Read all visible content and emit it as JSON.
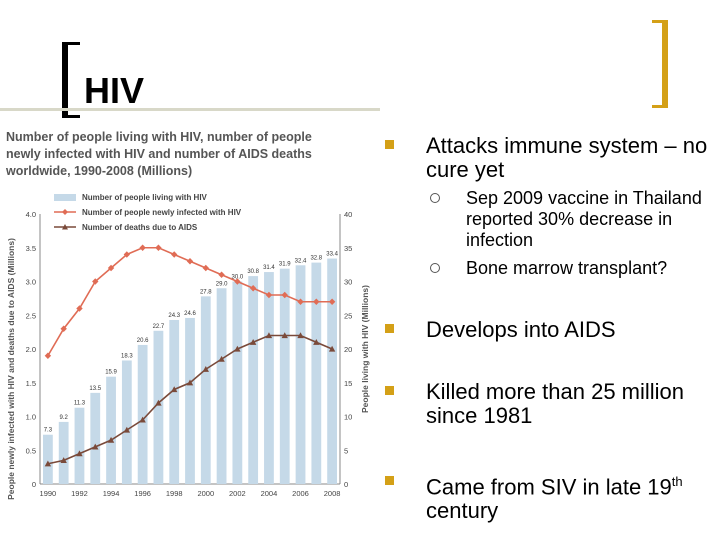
{
  "slide": {
    "title": "HIV",
    "bullets": [
      {
        "text": "Attacks immune system – no cure yet"
      },
      {
        "text": "Develops into AIDS"
      },
      {
        "text": "Killed more than 25 million since 1981"
      },
      {
        "text": "Came from SIV in late 19",
        "sup": "th",
        "after": " century"
      }
    ],
    "subbullets": [
      {
        "text": "Sep 2009 vaccine in Thailand reported 30% decrease in infection"
      },
      {
        "text": "Bone marrow transplant?"
      }
    ]
  },
  "chart_data": {
    "type": "bar",
    "title_lines": [
      "Number of people living with HIV, number of people",
      "newly infected with HIV and number of AIDS deaths",
      "worldwide, 1990-2008 (Millions)"
    ],
    "x_tick_labels": [
      "1990",
      "1992",
      "1994",
      "1996",
      "1998",
      "2000",
      "2002",
      "2004",
      "2006",
      "2008"
    ],
    "x": [
      1990,
      1991,
      1992,
      1993,
      1994,
      1995,
      1996,
      1997,
      1998,
      1999,
      2000,
      2001,
      2002,
      2003,
      2004,
      2005,
      2006,
      2007,
      2008
    ],
    "ylabel_left": "People newly infected with HIV and deaths due to AIDS (Millions)",
    "ylabel_right": "People living with HIV (Millions)",
    "ylim_left": [
      0,
      4.0
    ],
    "ylim_right": [
      0,
      40
    ],
    "y_ticks_left": [
      "0",
      "0.5",
      "1.0",
      "1.5",
      "2.0",
      "2.5",
      "3.0",
      "3.5",
      "4.0"
    ],
    "y_ticks_right": [
      "0",
      "5",
      "10",
      "15",
      "20",
      "25",
      "30",
      "35",
      "40"
    ],
    "legend_position": "top-left",
    "series": [
      {
        "name": "Number of people living with HIV",
        "axis": "right",
        "kind": "bar",
        "color": "#c5d9e8",
        "values": [
          7.3,
          9.2,
          11.3,
          13.5,
          15.9,
          18.3,
          20.6,
          22.7,
          24.3,
          24.6,
          27.8,
          29.0,
          30.0,
          30.8,
          31.4,
          31.9,
          32.4,
          32.8,
          33.4
        ],
        "labels": [
          "7.3",
          "9.2",
          "11.3",
          "13.5",
          "15.9",
          "18.3",
          "20.6",
          "22.7",
          "24.3",
          "24.6",
          "27.8",
          "29.0",
          "30.0",
          "30.8",
          "31.4",
          "31.9",
          "32.4",
          "32.8",
          "33.4"
        ]
      },
      {
        "name": "Number of people newly infected with HIV",
        "axis": "left",
        "kind": "line",
        "marker": "diamond",
        "color": "#e06c55",
        "values": [
          1.9,
          2.3,
          2.6,
          3.0,
          3.2,
          3.4,
          3.5,
          3.5,
          3.4,
          3.3,
          3.2,
          3.1,
          3.0,
          2.9,
          2.8,
          2.8,
          2.7,
          2.7,
          2.7
        ]
      },
      {
        "name": "Number of deaths due to AIDS",
        "axis": "left",
        "kind": "line",
        "marker": "triangle",
        "color": "#7a4a3a",
        "values": [
          0.3,
          0.35,
          0.45,
          0.55,
          0.65,
          0.8,
          0.95,
          1.2,
          1.4,
          1.5,
          1.7,
          1.85,
          2.0,
          2.1,
          2.2,
          2.2,
          2.2,
          2.1,
          2.0
        ]
      }
    ]
  }
}
